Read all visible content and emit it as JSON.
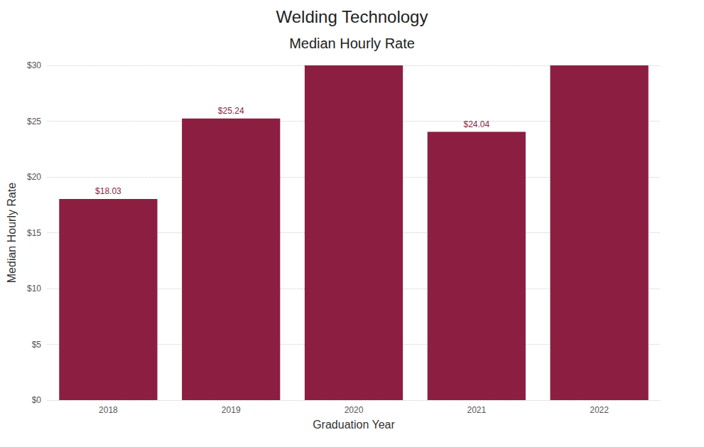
{
  "chart_data": {
    "type": "bar",
    "title": "Welding Technology",
    "subtitle": "Median Hourly Rate",
    "x_label": "Graduation Year",
    "y_label": "Median Hourly Rate",
    "categories": [
      "2018",
      "2019",
      "2020",
      "2021",
      "2022"
    ],
    "values": [
      18.03,
      25.24,
      30,
      24.04,
      30
    ],
    "value_labels": [
      "$18.03",
      "$25.24",
      null,
      "$24.04",
      null
    ],
    "color": "#8b1e41",
    "ylim": [
      0,
      30
    ],
    "yticks": [
      {
        "value": 0,
        "label": "$0"
      },
      {
        "value": 5,
        "label": "$5"
      },
      {
        "value": 10,
        "label": "$10"
      },
      {
        "value": 15,
        "label": "$15"
      },
      {
        "value": 20,
        "label": "$20"
      },
      {
        "value": 25,
        "label": "$25"
      },
      {
        "value": 30,
        "label": "$30"
      }
    ],
    "grid": true,
    "data_labels": true
  }
}
